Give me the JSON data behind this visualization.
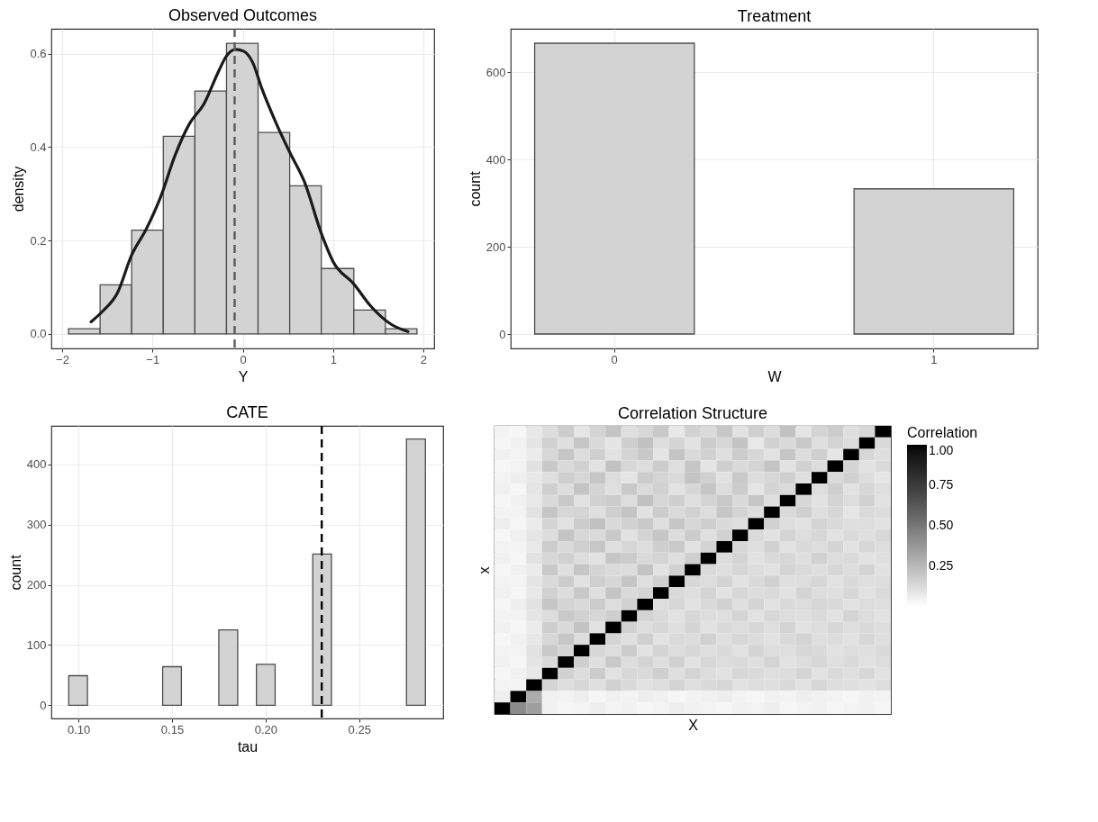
{
  "chart_data": [
    {
      "type": "histogram",
      "title": "Observed Outcomes",
      "xlabel": "Y",
      "ylabel": "density",
      "series": [
        {
          "type": "histogram",
          "bins": [
            -1.93,
            -1.58,
            -1.23,
            -0.88,
            -0.53,
            -0.18,
            0.17,
            0.52,
            0.87,
            1.23,
            1.58,
            1.93
          ],
          "values": [
            0.011,
            0.105,
            0.222,
            0.423,
            0.52,
            0.622,
            0.431,
            0.317,
            0.14,
            0.051,
            0.011
          ],
          "color": "#d3d3d3"
        },
        {
          "type": "line",
          "x": [
            -1.68,
            -1.55,
            -1.39,
            -1.23,
            -1.07,
            -0.91,
            -0.75,
            -0.59,
            -0.43,
            -0.27,
            -0.18,
            -0.08,
            0.01,
            0.11,
            0.21,
            0.37,
            0.52,
            0.68,
            0.88,
            1.0,
            1.23,
            1.42,
            1.64,
            1.83
          ],
          "values": [
            0.026,
            0.049,
            0.087,
            0.169,
            0.224,
            0.293,
            0.382,
            0.45,
            0.492,
            0.561,
            0.595,
            0.609,
            0.605,
            0.581,
            0.526,
            0.451,
            0.389,
            0.327,
            0.21,
            0.155,
            0.107,
            0.059,
            0.021,
            0.005
          ],
          "color": "#1a1a1a"
        }
      ],
      "xlim": [
        -2.12,
        2.12
      ],
      "xticks": [
        {
          "value": -2,
          "label": "−2"
        },
        {
          "value": -1,
          "label": "−1"
        },
        0,
        1,
        2
      ],
      "ylim": [
        -0.031,
        0.653
      ],
      "yticks": [
        {
          "value": 0,
          "label": "0.0"
        },
        0.2,
        0.4,
        0.6
      ],
      "ref_lines": [
        {
          "axis": "x",
          "value": -0.09,
          "color": "#595959",
          "line_style": "dashed"
        }
      ],
      "grid": true
    },
    {
      "type": "bar",
      "title": "Treatment",
      "xlabel": "W",
      "ylabel": "count",
      "categories": [
        "0",
        "1"
      ],
      "values": [
        667,
        333
      ],
      "color": "#d3d3d3",
      "ylim": [
        -33,
        700
      ],
      "yticks": [
        0,
        200,
        400,
        600
      ],
      "grid": true
    },
    {
      "type": "histogram",
      "title": "CATE",
      "xlabel": "tau",
      "ylabel": "count",
      "bins": [
        0.0948,
        0.1048,
        0.1149,
        0.1249,
        0.1349,
        0.145,
        0.155,
        0.165,
        0.175,
        0.1851,
        0.1951,
        0.2051,
        0.2152,
        0.2252,
        0.2352,
        0.2452,
        0.2553,
        0.2653,
        0.2753,
        0.2854
      ],
      "values": [
        49,
        0,
        0,
        0,
        0,
        64,
        0,
        0,
        125,
        0,
        68,
        0,
        0,
        251,
        0,
        0,
        0,
        0,
        442
      ],
      "color": "#d3d3d3",
      "xlim": [
        0.0855,
        0.2949
      ],
      "xticks": [
        {
          "value": 0.1,
          "label": "0.10"
        },
        {
          "value": 0.15,
          "label": "0.15"
        },
        {
          "value": 0.2,
          "label": "0.20"
        },
        {
          "value": 0.25,
          "label": "0.25"
        }
      ],
      "ylim": [
        -22,
        464
      ],
      "yticks": [
        0,
        100,
        200,
        300,
        400
      ],
      "ref_lines": [
        {
          "axis": "x",
          "value": 0.23,
          "color": "#000000",
          "line_style": "dashed"
        }
      ],
      "grid": true
    },
    {
      "type": "heatmap",
      "title": "Correlation Structure",
      "xlabel": "X",
      "ylabel": "x",
      "clabel": "Correlation",
      "categories": [
        null,
        null,
        null,
        null,
        null,
        null,
        null,
        null,
        null,
        null,
        null,
        null,
        null,
        null,
        null,
        null,
        null,
        null,
        null,
        null,
        null,
        null,
        null,
        null,
        null
      ],
      "y_categories": [
        null,
        null,
        null,
        null,
        null,
        null,
        null,
        null,
        null,
        null,
        null,
        null,
        null,
        null,
        null,
        null,
        null,
        null,
        null,
        null,
        null,
        null,
        null,
        null,
        null
      ],
      "cells": [
        [
          0.04,
          0.03,
          0.08,
          0.12,
          0.18,
          0.09,
          0.15,
          0.21,
          0.11,
          0.14,
          0.19,
          0.08,
          0.16,
          0.13,
          0.2,
          0.1,
          0.17,
          0.12,
          0.22,
          0.09,
          0.15,
          0.18,
          0.11,
          0.14,
          1
        ],
        [
          0.03,
          0.05,
          0.09,
          0.16,
          0.11,
          0.2,
          0.13,
          0.09,
          0.17,
          0.22,
          0.12,
          0.15,
          0.1,
          0.18,
          0.14,
          0.21,
          0.08,
          0.16,
          0.13,
          0.19,
          0.11,
          0.15,
          0.12,
          1,
          0.13
        ],
        [
          0.05,
          0.04,
          0.07,
          0.14,
          0.2,
          0.12,
          0.17,
          0.1,
          0.15,
          0.19,
          0.09,
          0.21,
          0.13,
          0.16,
          0.11,
          0.18,
          0.14,
          0.1,
          0.2,
          0.12,
          0.17,
          0.09,
          1,
          0.14,
          0.11
        ],
        [
          0.03,
          0.04,
          0.1,
          0.19,
          0.13,
          0.16,
          0.1,
          0.22,
          0.14,
          0.12,
          0.18,
          0.11,
          0.2,
          0.09,
          0.17,
          0.13,
          0.15,
          0.21,
          0.1,
          0.16,
          0.12,
          1,
          0.15,
          0.1,
          0.13
        ],
        [
          0.04,
          0.06,
          0.08,
          0.11,
          0.17,
          0.14,
          0.2,
          0.12,
          0.09,
          0.18,
          0.15,
          0.13,
          0.21,
          0.16,
          0.1,
          0.19,
          0.12,
          0.14,
          0.17,
          0.11,
          1,
          0.13,
          0.16,
          0.12,
          0.09
        ],
        [
          0.05,
          0.03,
          0.09,
          0.17,
          0.12,
          0.21,
          0.15,
          0.11,
          0.19,
          0.13,
          0.16,
          0.1,
          0.14,
          0.2,
          0.12,
          0.18,
          0.09,
          0.15,
          0.13,
          1,
          0.12,
          0.17,
          0.1,
          0.14,
          0.11
        ],
        [
          0.03,
          0.05,
          0.08,
          0.13,
          0.19,
          0.1,
          0.16,
          0.18,
          0.12,
          0.22,
          0.14,
          0.17,
          0.11,
          0.15,
          0.19,
          0.13,
          0.2,
          0.11,
          1,
          0.14,
          0.1,
          0.15,
          0.12,
          0.16,
          0.1
        ],
        [
          0.04,
          0.04,
          0.1,
          0.2,
          0.14,
          0.15,
          0.11,
          0.17,
          0.21,
          0.1,
          0.18,
          0.13,
          0.16,
          0.12,
          0.2,
          0.15,
          0.12,
          1,
          0.13,
          0.17,
          0.11,
          0.14,
          0.09,
          0.13,
          0.12
        ],
        [
          0.06,
          0.03,
          0.07,
          0.15,
          0.1,
          0.18,
          0.22,
          0.13,
          0.16,
          0.19,
          0.11,
          0.2,
          0.14,
          0.17,
          0.13,
          0.11,
          1,
          0.16,
          0.12,
          0.1,
          0.15,
          0.13,
          0.11,
          0.12,
          0.1
        ],
        [
          0.03,
          0.05,
          0.09,
          0.12,
          0.21,
          0.14,
          0.13,
          0.19,
          0.1,
          0.15,
          0.2,
          0.12,
          0.18,
          0.11,
          0.16,
          1,
          0.13,
          0.1,
          0.15,
          0.12,
          0.14,
          0.1,
          0.13,
          0.11,
          0.14
        ],
        [
          0.04,
          0.04,
          0.08,
          0.18,
          0.13,
          0.17,
          0.2,
          0.11,
          0.14,
          0.12,
          0.17,
          0.19,
          0.1,
          0.15,
          1,
          0.14,
          0.11,
          0.16,
          0.1,
          0.13,
          0.12,
          0.15,
          0.1,
          0.14,
          0.12
        ],
        [
          0.05,
          0.03,
          0.1,
          0.14,
          0.16,
          0.12,
          0.1,
          0.2,
          0.18,
          0.13,
          0.15,
          0.11,
          0.17,
          1,
          0.12,
          0.15,
          0.1,
          0.13,
          0.14,
          0.11,
          0.16,
          0.12,
          0.13,
          0.1,
          0.11
        ],
        [
          0.03,
          0.05,
          0.07,
          0.19,
          0.11,
          0.2,
          0.15,
          0.13,
          0.12,
          0.21,
          0.1,
          0.16,
          1,
          0.13,
          0.11,
          0.14,
          0.12,
          0.1,
          0.15,
          0.13,
          0.11,
          0.14,
          0.12,
          0.15,
          0.1
        ],
        [
          0.04,
          0.04,
          0.09,
          0.13,
          0.18,
          0.1,
          0.17,
          0.14,
          0.2,
          0.11,
          0.16,
          1,
          0.14,
          0.12,
          0.15,
          0.1,
          0.13,
          0.16,
          0.11,
          0.12,
          0.14,
          0.1,
          0.13,
          0.11,
          0.12
        ],
        [
          0.05,
          0.03,
          0.08,
          0.16,
          0.12,
          0.19,
          0.11,
          0.21,
          0.13,
          0.15,
          1,
          0.13,
          0.11,
          0.15,
          0.1,
          0.14,
          0.12,
          0.13,
          0.1,
          0.15,
          0.12,
          0.11,
          0.14,
          0.1,
          0.13
        ],
        [
          0.03,
          0.06,
          0.1,
          0.2,
          0.15,
          0.13,
          0.18,
          0.12,
          0.16,
          1,
          0.12,
          0.14,
          0.1,
          0.13,
          0.16,
          0.11,
          0.15,
          0.1,
          0.13,
          0.12,
          0.14,
          0.13,
          0.1,
          0.12,
          0.11
        ],
        [
          0.04,
          0.04,
          0.09,
          0.12,
          0.19,
          0.16,
          0.14,
          0.17,
          1,
          0.15,
          0.13,
          0.1,
          0.14,
          0.12,
          0.11,
          0.15,
          0.1,
          0.14,
          0.12,
          0.11,
          0.13,
          0.1,
          0.15,
          0.12,
          0.1
        ],
        [
          0.05,
          0.03,
          0.07,
          0.17,
          0.13,
          0.21,
          0.1,
          1,
          0.16,
          0.12,
          0.14,
          0.11,
          0.15,
          0.1,
          0.13,
          0.12,
          0.14,
          0.11,
          0.15,
          0.1,
          0.12,
          0.14,
          0.11,
          0.13,
          0.12
        ],
        [
          0.03,
          0.05,
          0.08,
          0.14,
          0.2,
          0.12,
          1,
          0.15,
          0.11,
          0.17,
          0.1,
          0.13,
          0.12,
          0.16,
          0.11,
          0.14,
          0.12,
          0.1,
          0.13,
          0.15,
          0.11,
          0.12,
          0.1,
          0.14,
          0.11
        ],
        [
          0.04,
          0.04,
          0.1,
          0.19,
          0.15,
          1,
          0.14,
          0.12,
          0.18,
          0.1,
          0.15,
          0.12,
          0.14,
          0.11,
          0.13,
          0.1,
          0.15,
          0.12,
          0.11,
          0.14,
          0.13,
          0.1,
          0.12,
          0.11,
          0.13
        ],
        [
          0.05,
          0.03,
          0.09,
          0.13,
          1,
          0.17,
          0.11,
          0.19,
          0.12,
          0.15,
          0.11,
          0.16,
          0.1,
          0.14,
          0.12,
          0.13,
          0.11,
          0.15,
          0.1,
          0.12,
          0.14,
          0.11,
          0.13,
          0.1,
          0.12
        ],
        [
          0.03,
          0.05,
          0.08,
          1,
          0.16,
          0.12,
          0.18,
          0.1,
          0.14,
          0.13,
          0.17,
          0.11,
          0.15,
          0.12,
          0.1,
          0.14,
          0.13,
          0.11,
          0.12,
          0.15,
          0.1,
          0.13,
          0.11,
          0.14,
          0.1
        ],
        [
          0.04,
          0.04,
          1,
          0.15,
          0.12,
          0.14,
          0.11,
          0.16,
          0.13,
          0.1,
          0.12,
          0.15,
          0.11,
          0.13,
          0.14,
          0.1,
          0.12,
          0.11,
          0.13,
          0.1,
          0.14,
          0.12,
          0.11,
          0.1,
          0.12
        ],
        [
          0.06,
          1,
          0.3,
          0.05,
          0.04,
          0.06,
          0.03,
          0.05,
          0.04,
          0.06,
          0.05,
          0.03,
          0.04,
          0.05,
          0.06,
          0.04,
          0.03,
          0.05,
          0.04,
          0.06,
          0.05,
          0.04,
          0.03,
          0.05,
          0.04
        ],
        [
          1,
          0.42,
          0.35,
          0.05,
          0.03,
          0.04,
          0.06,
          0.04,
          0.05,
          0.03,
          0.04,
          0.06,
          0.05,
          0.04,
          0.03,
          0.05,
          0.04,
          0.06,
          0.03,
          0.04,
          0.05,
          0.03,
          0.04,
          0.05,
          0.03
        ]
      ],
      "clim": [
        0,
        1
      ],
      "cticks": [
        {
          "value": 0.25,
          "label": "0.25"
        },
        {
          "value": 0.5,
          "label": "0.50"
        },
        {
          "value": 0.75,
          "label": "0.75"
        },
        {
          "value": 1,
          "label": "1.00"
        }
      ],
      "tick_labels": false,
      "grid": false
    }
  ]
}
